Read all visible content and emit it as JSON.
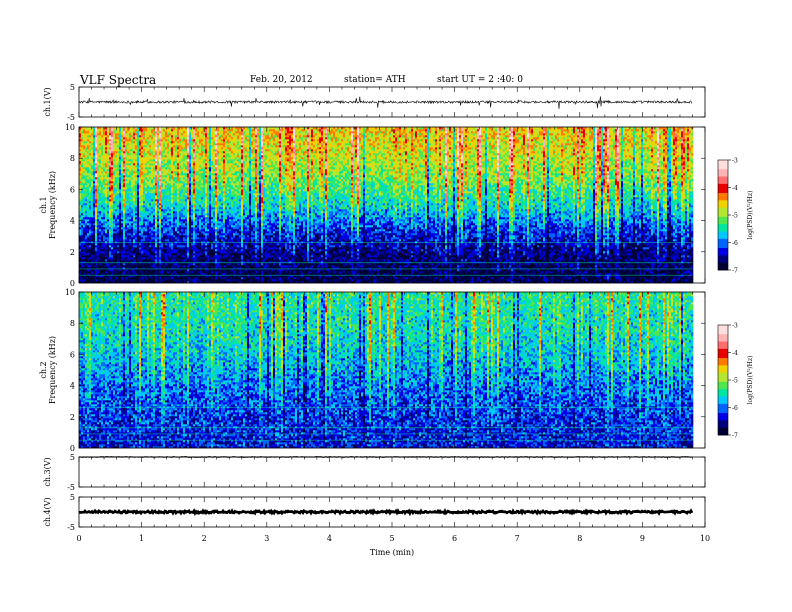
{
  "header": {
    "title": "VLF  Spectra",
    "date": "Feb. 20, 2012",
    "station": "station= ATH",
    "start": "start  UT  =   2 :40: 0"
  },
  "colors": {
    "colormap": [
      "#000033",
      "#00007a",
      "#0000e6",
      "#0064ff",
      "#00c8ff",
      "#00e6a0",
      "#50e650",
      "#b4e632",
      "#f0d200",
      "#ff7800",
      "#e60000",
      "#ff6e6e",
      "#ffb4b4",
      "#ffdede"
    ],
    "trace": "#000000"
  },
  "chart_data": [
    {
      "type": "line",
      "panel": "ch1-waveform",
      "ylabel": "ch.1(V)",
      "ylim": [
        -5,
        5
      ],
      "yticks": [
        "5",
        "-5"
      ],
      "xlim": [
        0,
        10
      ],
      "amplitude_typical": 0.4,
      "amplitude_peak": 1.5
    },
    {
      "type": "heatmap",
      "panel": "ch1-spectrogram",
      "ylabel": "ch.1\nFrequency  (kHz)",
      "ylim": [
        0,
        10
      ],
      "yticks": [
        "0",
        "2",
        "4",
        "6",
        "8",
        "10"
      ],
      "xlim": [
        0,
        10
      ],
      "colorbar": {
        "label": "log(PSD)(V²/Hz)",
        "range": [
          -7,
          -3
        ],
        "ticks": [
          "-3",
          "-4",
          "-5",
          "-6",
          "-7"
        ]
      },
      "band_profile": [
        {
          "f_khz": 0.5,
          "log_psd": -6.8
        },
        {
          "f_khz": 2,
          "log_psd": -6.6
        },
        {
          "f_khz": 3.5,
          "log_psd": -6.2
        },
        {
          "f_khz": 5,
          "log_psd": -5.6
        },
        {
          "f_khz": 7,
          "log_psd": -5.0
        },
        {
          "f_khz": 9,
          "log_psd": -4.7
        },
        {
          "f_khz": 10,
          "log_psd": -4.6
        }
      ],
      "data_end_min": 9.8
    },
    {
      "type": "heatmap",
      "panel": "ch2-spectrogram",
      "ylabel": "ch.2\nFrequency  (kHz)",
      "ylim": [
        0,
        10
      ],
      "yticks": [
        "0",
        "2",
        "4",
        "6",
        "8",
        "10"
      ],
      "xlim": [
        0,
        10
      ],
      "colorbar": {
        "label": "log(PSD)(V²/Hz)",
        "range": [
          -7,
          -3
        ],
        "ticks": [
          "-3",
          "-4",
          "-5",
          "-6",
          "-7"
        ]
      },
      "band_profile": [
        {
          "f_khz": 0.5,
          "log_psd": -6.3
        },
        {
          "f_khz": 2,
          "log_psd": -6.2
        },
        {
          "f_khz": 4,
          "log_psd": -6.0
        },
        {
          "f_khz": 6,
          "log_psd": -5.7
        },
        {
          "f_khz": 8,
          "log_psd": -5.5
        },
        {
          "f_khz": 10,
          "log_psd": -5.4
        }
      ],
      "data_end_min": 9.8
    },
    {
      "type": "line",
      "panel": "ch3-waveform",
      "ylabel": "ch.3(V)",
      "ylim": [
        -5,
        5
      ],
      "yticks": [
        "5",
        "-5"
      ],
      "xlim": [
        0,
        10
      ],
      "level": 5
    },
    {
      "type": "line",
      "panel": "ch4-waveform",
      "ylabel": "ch.4(V)",
      "ylim": [
        -5,
        5
      ],
      "yticks": [
        "5",
        "-5"
      ],
      "xlim": [
        0,
        10
      ],
      "level": 0,
      "xlabel": "Time  (min)",
      "xticks": [
        "0",
        "1",
        "2",
        "3",
        "4",
        "5",
        "6",
        "7",
        "8",
        "9",
        "10"
      ]
    }
  ]
}
